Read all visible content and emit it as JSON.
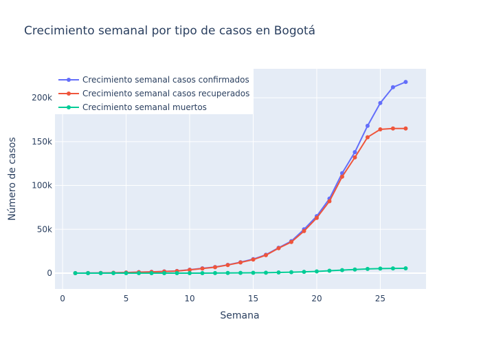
{
  "chart_data": {
    "type": "line",
    "title": "Crecimiento semanal por tipo de casos en Bogotá",
    "xlabel": "Semana",
    "ylabel": "Número de casos",
    "xlim": [
      -0.6,
      28.6
    ],
    "ylim": [
      -18000,
      233000
    ],
    "x_ticks": [
      0,
      5,
      10,
      15,
      20,
      25
    ],
    "y_ticks": [
      0,
      50000,
      100000,
      150000,
      200000
    ],
    "y_tick_labels": [
      "0",
      "50k",
      "100k",
      "150k",
      "200k"
    ],
    "grid": true,
    "legend_position": "top-left",
    "x": [
      1,
      2,
      3,
      4,
      5,
      6,
      7,
      8,
      9,
      10,
      11,
      12,
      13,
      14,
      15,
      16,
      17,
      18,
      19,
      20,
      21,
      22,
      23,
      24,
      25,
      26,
      27
    ],
    "series": [
      {
        "name": "Crecimiento semanal casos confirmados",
        "color": "#636efa",
        "values": [
          0,
          100,
          200,
          400,
          700,
          1200,
          1500,
          2000,
          2500,
          4000,
          5500,
          7000,
          9500,
          12500,
          16000,
          21000,
          29000,
          36500,
          50000,
          65000,
          85000,
          114000,
          138000,
          168000,
          194000,
          212000,
          218000
        ]
      },
      {
        "name": "Crecimiento semanal casos recuperados",
        "color": "#ef553b",
        "values": [
          0,
          100,
          200,
          400,
          700,
          1100,
          1400,
          1900,
          2400,
          3800,
          5200,
          6800,
          9300,
          12200,
          15500,
          20500,
          28500,
          35500,
          48000,
          63000,
          82000,
          110000,
          132000,
          155000,
          164000,
          165000,
          165000
        ]
      },
      {
        "name": "Crecimiento semanal muertos",
        "color": "#00cc96",
        "values": [
          0,
          0,
          0,
          0,
          0,
          0,
          0,
          0,
          0,
          0,
          0,
          100,
          200,
          300,
          400,
          500,
          800,
          1100,
          1500,
          2000,
          2800,
          3500,
          4200,
          4800,
          5200,
          5400,
          5500
        ]
      }
    ]
  }
}
